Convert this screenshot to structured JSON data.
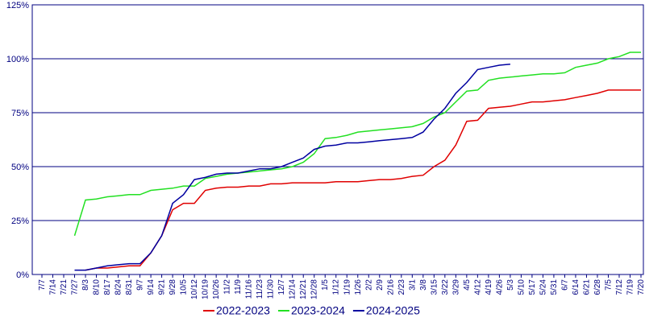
{
  "chart_data": {
    "type": "line",
    "categories": [
      "7/7",
      "7/14",
      "7/21",
      "7/27",
      "8/3",
      "8/10",
      "8/17",
      "8/24",
      "8/31",
      "9/7",
      "9/14",
      "9/21",
      "9/28",
      "10/5",
      "10/12",
      "10/19",
      "10/26",
      "11/2",
      "11/9",
      "11/16",
      "11/23",
      "11/30",
      "12/7",
      "12/14",
      "12/21",
      "12/28",
      "1/5",
      "1/12",
      "1/19",
      "1/26",
      "2/2",
      "2/9",
      "2/16",
      "2/23",
      "3/1",
      "3/8",
      "3/15",
      "3/22",
      "3/29",
      "4/5",
      "4/12",
      "4/19",
      "4/26",
      "5/3",
      "5/10",
      "5/17",
      "5/24",
      "5/31",
      "6/7",
      "6/14",
      "6/21",
      "6/28",
      "7/5",
      "7/12",
      "7/19",
      "7/20"
    ],
    "series": [
      {
        "name": "2022-2023",
        "color": "#e00000",
        "values": [
          null,
          null,
          null,
          null,
          2,
          3,
          3,
          3.5,
          4,
          4,
          10,
          18,
          30,
          33,
          33,
          39,
          40,
          40.5,
          40.5,
          41,
          41,
          42,
          42,
          42.5,
          42.5,
          42.5,
          42.5,
          43,
          43,
          43,
          43.5,
          44,
          44,
          44.5,
          45.5,
          46,
          50,
          53,
          60,
          71,
          71.5,
          77,
          77.5,
          78,
          79,
          80,
          80,
          80.5,
          81,
          82,
          83,
          84,
          85.5,
          85.5,
          85.5,
          85.5
        ]
      },
      {
        "name": "2023-2024",
        "color": "#22e022",
        "values": [
          null,
          null,
          null,
          18,
          34.5,
          35,
          36,
          36.5,
          37,
          37,
          39,
          39.5,
          40,
          41,
          41,
          44.5,
          45.5,
          46.5,
          47,
          47.5,
          48,
          48.5,
          49,
          50,
          52,
          56,
          63,
          63.5,
          64.5,
          66,
          66.5,
          67,
          67.5,
          68,
          68.5,
          70,
          73,
          75,
          80,
          85,
          85.5,
          90,
          91,
          91.5,
          92,
          92.5,
          93,
          93,
          93.5,
          96,
          97,
          98,
          100,
          101,
          103,
          103
        ]
      },
      {
        "name": "2024-2025",
        "color": "#0000a0",
        "values": [
          null,
          null,
          null,
          2,
          2,
          3,
          4,
          4.5,
          5,
          5,
          10,
          18,
          33,
          37,
          44,
          45,
          46.5,
          47,
          47,
          48,
          49,
          49,
          50,
          52,
          54,
          58,
          59.5,
          60,
          61,
          61,
          61.5,
          62,
          62.5,
          63,
          63.5,
          66,
          72,
          77,
          84,
          89,
          95,
          96,
          97,
          97.5,
          null,
          null,
          null,
          null,
          null,
          null,
          null,
          null,
          null,
          null,
          null,
          null
        ]
      }
    ],
    "ylim": [
      0,
      125
    ],
    "yticks": [
      {
        "value": 0,
        "label": "0%"
      },
      {
        "value": 25,
        "label": "25%"
      },
      {
        "value": 50,
        "label": "50%"
      },
      {
        "value": 75,
        "label": "75%"
      },
      {
        "value": 100,
        "label": "100%"
      },
      {
        "value": 125,
        "label": "125%"
      }
    ],
    "grid": true
  }
}
